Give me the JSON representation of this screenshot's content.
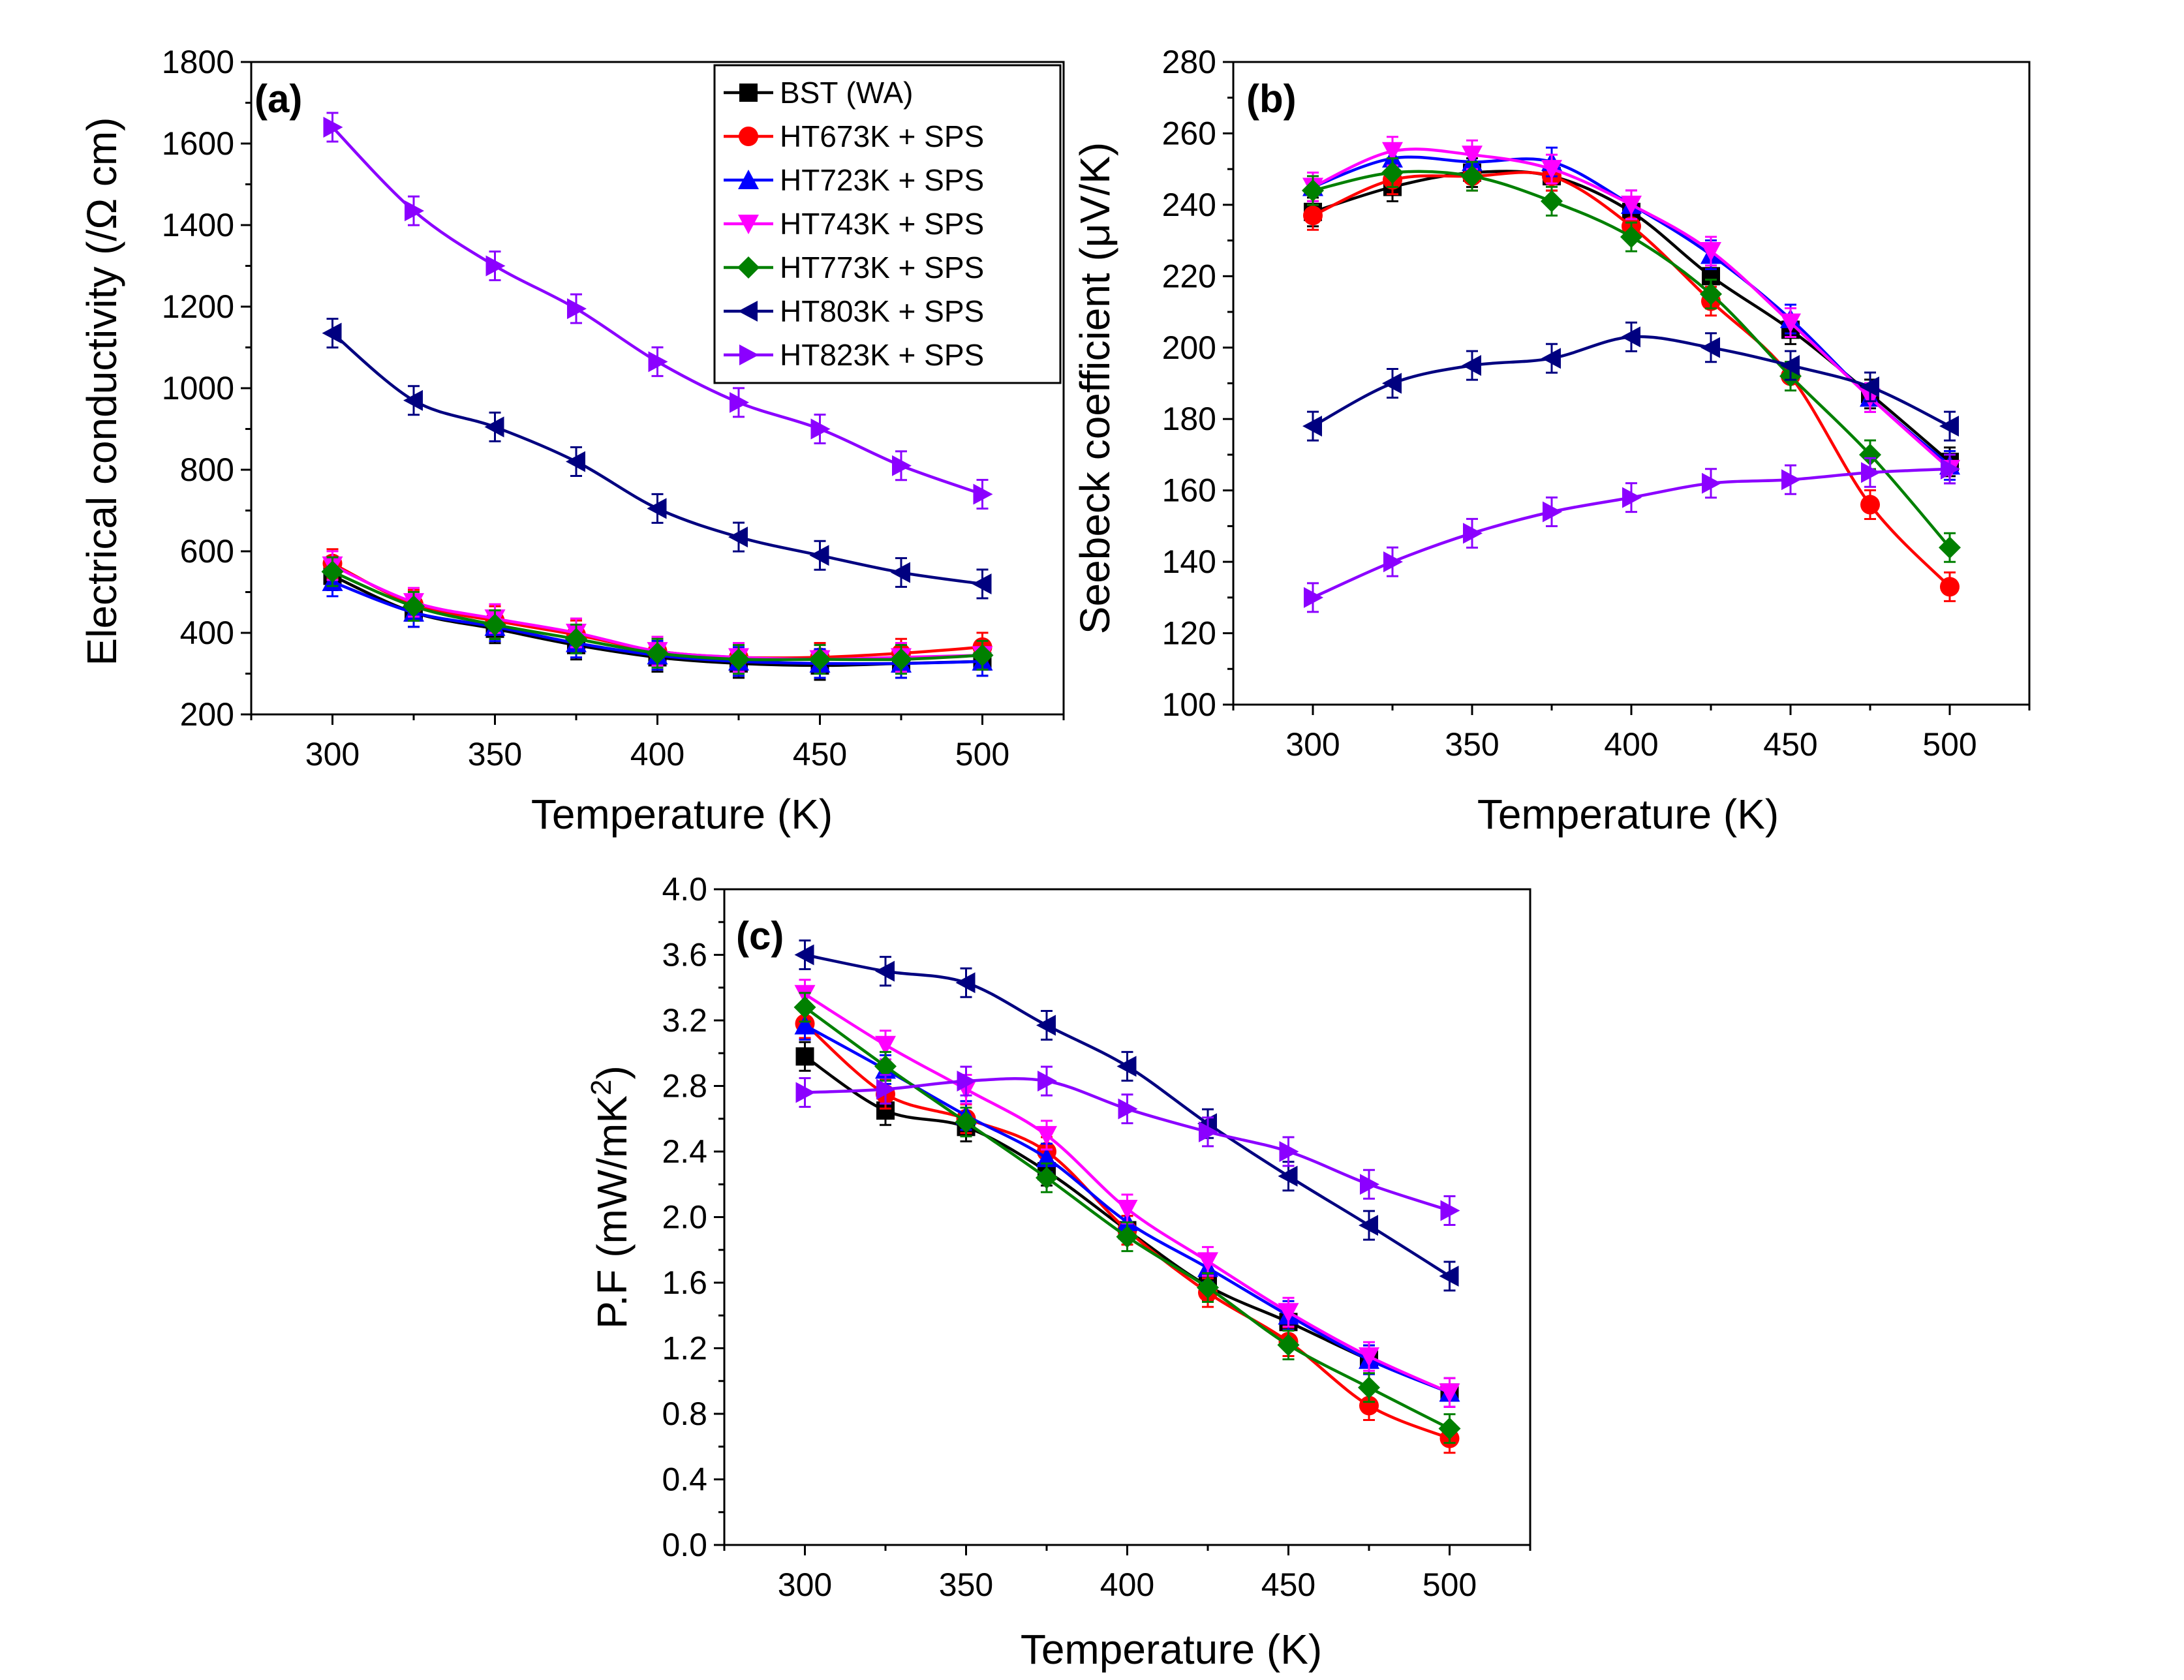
{
  "series_style": [
    {
      "name": "BST (WA)",
      "color": "#000000",
      "marker": "square"
    },
    {
      "name": "HT673K + SPS",
      "color": "#ff0000",
      "marker": "circle"
    },
    {
      "name": "HT723K + SPS",
      "color": "#0000ff",
      "marker": "triangle-up"
    },
    {
      "name": "HT743K + SPS",
      "color": "#ff00ff",
      "marker": "triangle-down"
    },
    {
      "name": "HT773K + SPS",
      "color": "#008000",
      "marker": "diamond"
    },
    {
      "name": "HT803K + SPS",
      "color": "#000080",
      "marker": "triangle-left"
    },
    {
      "name": "HT823K + SPS",
      "color": "#8b00ff",
      "marker": "triangle-right"
    }
  ],
  "chart_data": [
    {
      "id": "a",
      "type": "line",
      "panel_label": "(a)",
      "xlabel": "Temperature (K)",
      "ylabel": "Electrical conductivity (/Ω cm)",
      "xlim": [
        275,
        525
      ],
      "ylim": [
        200,
        1800
      ],
      "xticks": [
        300,
        350,
        400,
        450,
        500
      ],
      "yticks": [
        200,
        400,
        600,
        800,
        1000,
        1200,
        1400,
        1600,
        1800
      ],
      "yticklabels": [
        "200",
        "400",
        "600",
        "800",
        "1000",
        "1200",
        "1400",
        "1600",
        "1800"
      ],
      "legend": {
        "position": "top-right",
        "entries": [
          "BST (WA)",
          "HT673K + SPS",
          "HT723K + SPS",
          "HT743K + SPS",
          "HT773K + SPS",
          "HT803K + SPS",
          "HT823K + SPS"
        ]
      },
      "x": [
        300,
        325,
        350,
        375,
        400,
        425,
        450,
        475,
        500
      ],
      "series": [
        {
          "name": "BST (WA)",
          "values": [
            540,
            450,
            410,
            370,
            340,
            325,
            320,
            325,
            330
          ]
        },
        {
          "name": "HT673K + SPS",
          "values": [
            570,
            470,
            430,
            395,
            355,
            340,
            340,
            350,
            365
          ]
        },
        {
          "name": "HT723K + SPS",
          "values": [
            525,
            450,
            415,
            375,
            345,
            330,
            325,
            325,
            330
          ]
        },
        {
          "name": "HT743K + SPS",
          "values": [
            565,
            475,
            435,
            400,
            355,
            340,
            335,
            340,
            345
          ]
        },
        {
          "name": "HT773K + SPS",
          "values": [
            550,
            465,
            420,
            385,
            350,
            335,
            335,
            335,
            345
          ]
        },
        {
          "name": "HT803K + SPS",
          "values": [
            1135,
            970,
            905,
            820,
            705,
            635,
            590,
            548,
            520
          ]
        },
        {
          "name": "HT823K + SPS",
          "values": [
            1640,
            1435,
            1300,
            1195,
            1065,
            965,
            900,
            810,
            740
          ]
        }
      ]
    },
    {
      "id": "b",
      "type": "line",
      "panel_label": "(b)",
      "xlabel": "Temperature (K)",
      "ylabel": "Seebeck coefficient (μV/K)",
      "xlim": [
        275,
        525
      ],
      "ylim": [
        100,
        280
      ],
      "xticks": [
        300,
        350,
        400,
        450,
        500
      ],
      "yticks": [
        100,
        120,
        140,
        160,
        180,
        200,
        220,
        240,
        260,
        280
      ],
      "yticklabels": [
        "100",
        "120",
        "140",
        "160",
        "180",
        "200",
        "220",
        "240",
        "260",
        "280"
      ],
      "x": [
        300,
        325,
        350,
        375,
        400,
        425,
        450,
        475,
        500
      ],
      "series": [
        {
          "name": "BST (WA)",
          "values": [
            238,
            245,
            249,
            248,
            238,
            220,
            205,
            187,
            168
          ]
        },
        {
          "name": "HT673K + SPS",
          "values": [
            237,
            247,
            248,
            248,
            234,
            213,
            192,
            156,
            133
          ]
        },
        {
          "name": "HT723K + SPS",
          "values": [
            245,
            253,
            252,
            252,
            240,
            226,
            208,
            186,
            167
          ]
        },
        {
          "name": "HT743K + SPS",
          "values": [
            245,
            255,
            254,
            250,
            240,
            227,
            207,
            186,
            166
          ]
        },
        {
          "name": "HT773K + SPS",
          "values": [
            244,
            249,
            248,
            241,
            231,
            215,
            192,
            170,
            144
          ]
        },
        {
          "name": "HT803K + SPS",
          "values": [
            178,
            190,
            195,
            197,
            203,
            200,
            195,
            189,
            178
          ]
        },
        {
          "name": "HT823K + SPS",
          "values": [
            130,
            140,
            148,
            154,
            158,
            162,
            163,
            165,
            166
          ]
        }
      ]
    },
    {
      "id": "c",
      "type": "line",
      "panel_label": "(c)",
      "xlabel": "Temperature (K)",
      "ylabel": "P.F (mW/mK",
      "ylabel_sup": "2",
      "ylabel_close": ")",
      "xlim": [
        275,
        525
      ],
      "ylim": [
        0,
        4
      ],
      "xticks": [
        300,
        350,
        400,
        450,
        500
      ],
      "yticks": [
        0,
        0.4,
        0.8,
        1.2,
        1.6,
        2.0,
        2.4,
        2.8,
        3.2,
        3.6,
        4.0
      ],
      "yticklabels": [
        "0.0",
        "0.4",
        "0.8",
        "1.2",
        "1.6",
        "2.0",
        "2.4",
        "2.8",
        "3.2",
        "3.6",
        "4.0"
      ],
      "x": [
        300,
        325,
        350,
        375,
        400,
        425,
        450,
        475,
        500
      ],
      "series": [
        {
          "name": "BST (WA)",
          "values": [
            2.98,
            2.65,
            2.55,
            2.28,
            1.92,
            1.58,
            1.36,
            1.13,
            0.93
          ]
        },
        {
          "name": "HT673K + SPS",
          "values": [
            3.18,
            2.75,
            2.6,
            2.4,
            1.92,
            1.54,
            1.24,
            0.85,
            0.65
          ]
        },
        {
          "name": "HT723K + SPS",
          "values": [
            3.17,
            2.9,
            2.62,
            2.36,
            1.97,
            1.69,
            1.4,
            1.13,
            0.93
          ]
        },
        {
          "name": "HT743K + SPS",
          "values": [
            3.36,
            3.05,
            2.78,
            2.5,
            2.05,
            1.73,
            1.42,
            1.15,
            0.93
          ]
        },
        {
          "name": "HT773K + SPS",
          "values": [
            3.28,
            2.92,
            2.58,
            2.24,
            1.88,
            1.57,
            1.22,
            0.96,
            0.71
          ]
        },
        {
          "name": "HT803K + SPS",
          "values": [
            3.6,
            3.5,
            3.43,
            3.17,
            2.92,
            2.57,
            2.25,
            1.95,
            1.64
          ]
        },
        {
          "name": "HT823K + SPS",
          "values": [
            2.76,
            2.78,
            2.83,
            2.83,
            2.66,
            2.52,
            2.4,
            2.2,
            2.04
          ]
        }
      ]
    }
  ]
}
